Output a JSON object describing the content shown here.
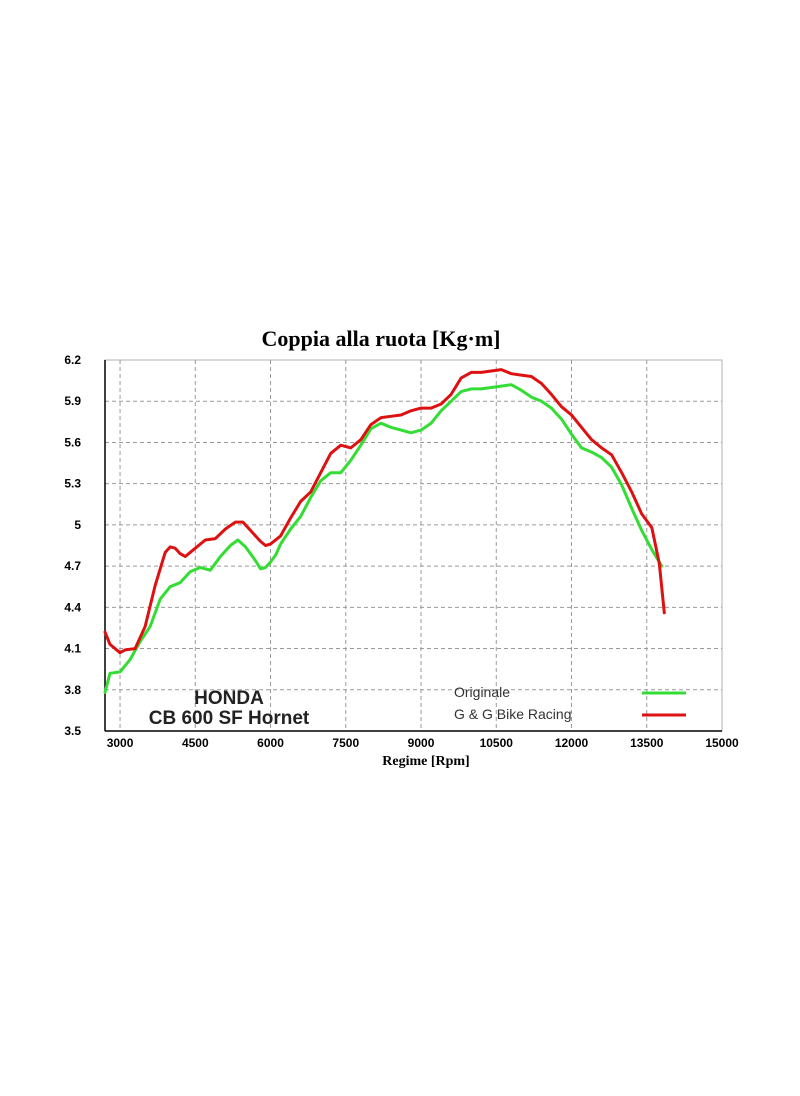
{
  "chart_data": {
    "type": "line",
    "title": "Coppia alla ruota [Kg·m]",
    "xlabel": "Regime [Rpm]",
    "ylabel": "",
    "xlim": [
      2700,
      15000
    ],
    "ylim": [
      3.5,
      6.2
    ],
    "x_ticks": [
      3000,
      4500,
      6000,
      7500,
      9000,
      10500,
      12000,
      13500,
      15000
    ],
    "y_ticks": [
      3.5,
      3.8,
      4.1,
      4.4,
      4.7,
      5,
      5.3,
      5.6,
      5.9,
      6.2
    ],
    "grid": true,
    "legend_position": "bottom-right",
    "annotation": {
      "line1": "HONDA",
      "line2": "CB 600 SF Hornet"
    },
    "series": [
      {
        "name": "Originale",
        "color": "#33dd33",
        "x": [
          2700,
          2800,
          3000,
          3200,
          3400,
          3600,
          3800,
          4000,
          4200,
          4400,
          4600,
          4800,
          5000,
          5200,
          5350,
          5500,
          5700,
          5800,
          5900,
          6000,
          6100,
          6200,
          6400,
          6600,
          6800,
          7000,
          7200,
          7400,
          7600,
          7800,
          8000,
          8200,
          8400,
          8600,
          8800,
          9000,
          9200,
          9400,
          9600,
          9800,
          10000,
          10200,
          10400,
          10600,
          10800,
          11000,
          11200,
          11400,
          11600,
          11800,
          12000,
          12200,
          12400,
          12600,
          12800,
          13000,
          13200,
          13400,
          13600,
          13800
        ],
        "values": [
          3.78,
          3.92,
          3.93,
          4.02,
          4.15,
          4.26,
          4.46,
          4.55,
          4.58,
          4.66,
          4.69,
          4.67,
          4.77,
          4.85,
          4.89,
          4.84,
          4.74,
          4.68,
          4.69,
          4.73,
          4.78,
          4.86,
          4.97,
          5.06,
          5.2,
          5.32,
          5.38,
          5.38,
          5.47,
          5.58,
          5.7,
          5.74,
          5.71,
          5.69,
          5.67,
          5.69,
          5.74,
          5.83,
          5.9,
          5.97,
          5.99,
          5.99,
          6.0,
          6.01,
          6.02,
          5.98,
          5.93,
          5.9,
          5.85,
          5.77,
          5.66,
          5.56,
          5.53,
          5.49,
          5.42,
          5.29,
          5.12,
          4.96,
          4.82,
          4.7
        ]
      },
      {
        "name": "G & G Bike Racing",
        "color": "#dd1111",
        "x": [
          2700,
          2800,
          3000,
          3100,
          3300,
          3500,
          3700,
          3900,
          4000,
          4100,
          4200,
          4300,
          4500,
          4700,
          4900,
          5100,
          5300,
          5450,
          5600,
          5800,
          5900,
          6000,
          6200,
          6400,
          6600,
          6800,
          7000,
          7200,
          7400,
          7600,
          7800,
          8000,
          8200,
          8400,
          8600,
          8800,
          9000,
          9200,
          9400,
          9600,
          9800,
          10000,
          10200,
          10400,
          10600,
          10800,
          11000,
          11200,
          11400,
          11600,
          11800,
          12000,
          12200,
          12400,
          12600,
          12800,
          13000,
          13200,
          13400,
          13600,
          13750,
          13850
        ],
        "values": [
          4.22,
          4.13,
          4.07,
          4.09,
          4.1,
          4.26,
          4.56,
          4.8,
          4.84,
          4.83,
          4.79,
          4.77,
          4.83,
          4.89,
          4.9,
          4.97,
          5.02,
          5.02,
          4.96,
          4.88,
          4.85,
          4.86,
          4.92,
          5.05,
          5.17,
          5.24,
          5.38,
          5.52,
          5.58,
          5.56,
          5.62,
          5.73,
          5.78,
          5.79,
          5.8,
          5.83,
          5.85,
          5.85,
          5.88,
          5.95,
          6.07,
          6.11,
          6.11,
          6.12,
          6.13,
          6.1,
          6.09,
          6.08,
          6.03,
          5.95,
          5.86,
          5.8,
          5.71,
          5.62,
          5.56,
          5.51,
          5.38,
          5.24,
          5.08,
          4.98,
          4.72,
          4.36
        ]
      }
    ]
  }
}
